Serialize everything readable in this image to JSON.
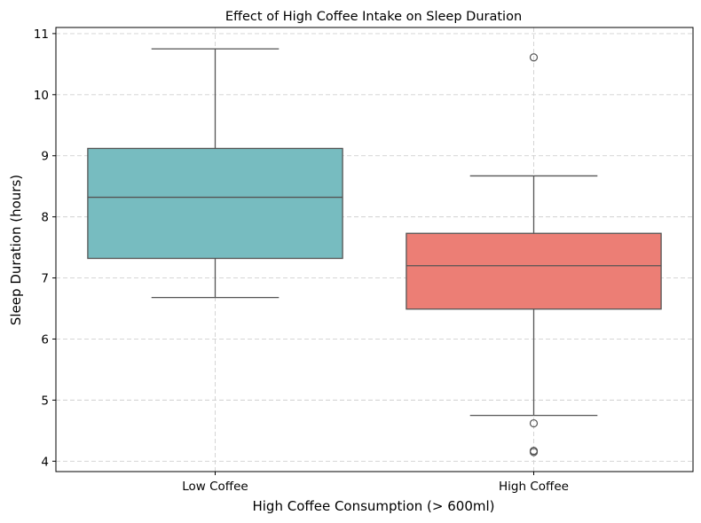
{
  "chart_data": {
    "type": "box",
    "title": "Effect of High Coffee Intake on Sleep Duration",
    "xlabel": "High Coffee Consumption (> 600ml)",
    "ylabel": "Sleep Duration (hours)",
    "ylim": [
      3.83,
      11.1
    ],
    "yticks": [
      4,
      5,
      6,
      7,
      8,
      9,
      10,
      11
    ],
    "grid": true,
    "categories": [
      "Low Coffee",
      "High Coffee"
    ],
    "boxes": [
      {
        "category": "Low Coffee",
        "whisker_low": 6.68,
        "q1": 7.32,
        "median": 8.32,
        "q3": 9.12,
        "whisker_high": 10.75,
        "outliers": [],
        "color": "#77bcc0"
      },
      {
        "category": "High Coffee",
        "whisker_low": 4.75,
        "q1": 6.49,
        "median": 7.2,
        "q3": 7.73,
        "whisker_high": 8.67,
        "outliers": [
          10.61,
          4.62,
          4.17,
          4.15
        ],
        "color": "#ec7e75"
      }
    ]
  }
}
